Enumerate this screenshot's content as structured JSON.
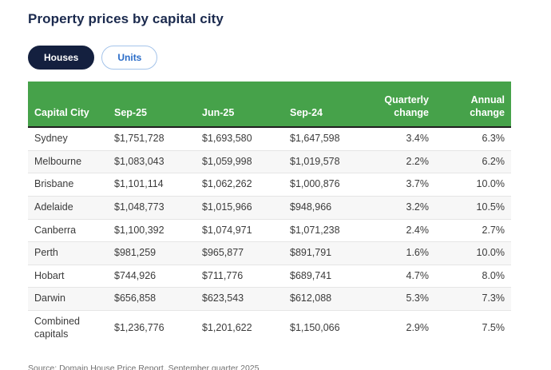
{
  "header": {
    "title": "Property prices by capital city"
  },
  "toggle": {
    "houses_label": "Houses",
    "units_label": "Units",
    "selected": "Houses"
  },
  "chart_data": {
    "type": "table",
    "title": "Property prices by capital city",
    "columns": [
      "Capital City",
      "Sep-25",
      "Jun-25",
      "Sep-24",
      "Quarterly change",
      "Annual change"
    ],
    "rows": [
      [
        "Sydney",
        "$1,751,728",
        "$1,693,580",
        "$1,647,598",
        "3.4%",
        "6.3%"
      ],
      [
        "Melbourne",
        "$1,083,043",
        "$1,059,998",
        "$1,019,578",
        "2.2%",
        "6.2%"
      ],
      [
        "Brisbane",
        "$1,101,114",
        "$1,062,262",
        "$1,000,876",
        "3.7%",
        "10.0%"
      ],
      [
        "Adelaide",
        "$1,048,773",
        "$1,015,966",
        "$948,966",
        "3.2%",
        "10.5%"
      ],
      [
        "Canberra",
        "$1,100,392",
        "$1,074,971",
        "$1,071,238",
        "2.4%",
        "2.7%"
      ],
      [
        "Perth",
        "$981,259",
        "$965,877",
        "$891,791",
        "1.6%",
        "10.0%"
      ],
      [
        "Hobart",
        "$744,926",
        "$711,776",
        "$689,741",
        "4.7%",
        "8.0%"
      ],
      [
        "Darwin",
        "$656,858",
        "$623,543",
        "$612,088",
        "5.3%",
        "7.3%"
      ],
      [
        "Combined capitals",
        "$1,236,776",
        "$1,201,622",
        "$1,150,066",
        "2.9%",
        "7.5%"
      ]
    ]
  },
  "footer": {
    "source": "Source: Domain House Price Report, September quarter 2025"
  },
  "colors": {
    "header_green": "#46a24a",
    "title_navy": "#1b2a4e",
    "selected_pill_navy": "#14203f",
    "unselected_pill_blue": "#2a6cc8",
    "stripe_gray": "#f7f7f7"
  }
}
